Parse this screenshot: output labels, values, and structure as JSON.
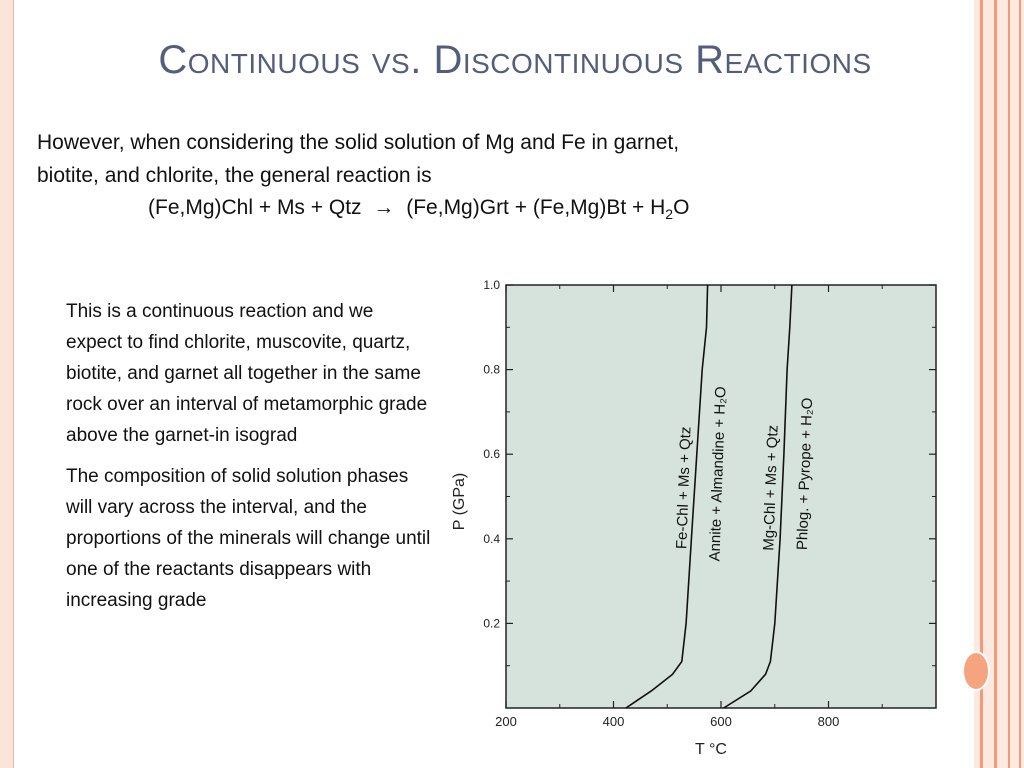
{
  "slide": {
    "title": "Continuous vs. Discontinuous Reactions",
    "intro_line1": "However, when considering the solid solution of Mg and Fe in garnet,",
    "intro_line2": "biotite, and chlorite, the general reaction is",
    "reaction_left": "(Fe,Mg)Chl + Ms + Qtz",
    "reaction_arrow": "→",
    "reaction_right": "(Fe,Mg)Grt + (Fe,Mg)Bt + H",
    "reaction_sub": "2",
    "reaction_tail": "O",
    "bullet1": "This is a continuous reaction and we expect to find chlorite, muscovite, quartz, biotite, and garnet all together in the same rock over an interval of metamorphic grade above the garnet-in isograd",
    "bullet2": "The composition of solid solution phases will vary across the interval, and the proportions of the minerals will change until one of the reactants disappears with increasing grade"
  },
  "colors": {
    "title": "#545e7c",
    "plot_bg": "#d6e3dc",
    "accent": "#f39a78"
  },
  "chart_data": {
    "type": "line",
    "xlabel": "T °C",
    "ylabel": "P (GPa)",
    "xlim": [
      200,
      1000
    ],
    "ylim": [
      0,
      1.0
    ],
    "x_ticks": [
      200,
      400,
      600,
      800
    ],
    "y_ticks": [
      0.2,
      0.4,
      0.6,
      0.8,
      1.0
    ],
    "series": [
      {
        "points": [
          [
            423,
            0
          ],
          [
            470,
            0.04
          ],
          [
            510,
            0.08
          ],
          [
            527,
            0.11
          ],
          [
            535,
            0.2
          ],
          [
            545,
            0.4
          ],
          [
            555,
            0.6
          ],
          [
            565,
            0.8
          ],
          [
            573,
            0.9
          ],
          [
            575,
            1.0
          ]
        ],
        "label_upper": "Fe-Chl + Ms + Qtz",
        "label_lower": "Annite + Almandine + H₂O"
      },
      {
        "points": [
          [
            605,
            0
          ],
          [
            655,
            0.04
          ],
          [
            683,
            0.08
          ],
          [
            692,
            0.11
          ],
          [
            700,
            0.2
          ],
          [
            710,
            0.4
          ],
          [
            717,
            0.6
          ],
          [
            723,
            0.8
          ],
          [
            728,
            0.9
          ],
          [
            732,
            1.0
          ]
        ],
        "label_upper": "Mg-Chl + Ms + Qtz",
        "label_lower": "Phlog. + Pyrope + H₂O"
      }
    ]
  }
}
